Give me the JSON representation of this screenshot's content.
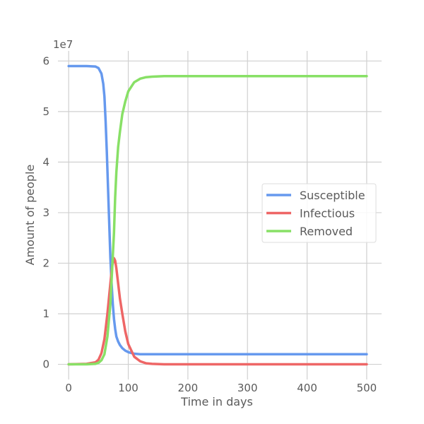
{
  "chart_data": {
    "type": "line",
    "title": "",
    "xlabel": "Time in days",
    "ylabel": "Amount of people",
    "y_offset_label": "1e7",
    "xlim": [
      -18,
      525
    ],
    "ylim": [
      -0.3,
      6.2
    ],
    "xticks": [
      0,
      100,
      200,
      300,
      400,
      500
    ],
    "xtick_labels": [
      "0",
      "100",
      "200",
      "300",
      "400",
      "500"
    ],
    "yticks": [
      0,
      1,
      2,
      3,
      4,
      5,
      6
    ],
    "ytick_labels": [
      "0",
      "1",
      "2",
      "3",
      "4",
      "5",
      "6"
    ],
    "grid": true,
    "legend_position": "center-right",
    "series": [
      {
        "name": "Susceptible",
        "color": "#6699ee",
        "x": [
          0,
          30,
          45,
          50,
          55,
          58,
          60,
          62,
          64,
          66,
          68,
          70,
          72,
          74,
          76,
          78,
          80,
          83,
          86,
          90,
          95,
          100,
          110,
          120,
          140,
          160,
          200,
          300,
          400,
          500
        ],
        "y": [
          5.9,
          5.9,
          5.89,
          5.86,
          5.75,
          5.55,
          5.3,
          4.8,
          4.2,
          3.5,
          2.8,
          2.1,
          1.6,
          1.2,
          0.9,
          0.7,
          0.55,
          0.45,
          0.38,
          0.32,
          0.27,
          0.24,
          0.21,
          0.2,
          0.2,
          0.2,
          0.2,
          0.2,
          0.2,
          0.2
        ]
      },
      {
        "name": "Infectious",
        "color": "#ee6666",
        "x": [
          0,
          30,
          45,
          50,
          55,
          60,
          65,
          70,
          73,
          76,
          78,
          80,
          83,
          86,
          90,
          95,
          100,
          110,
          120,
          130,
          140,
          160,
          200,
          300,
          400,
          500
        ],
        "y": [
          0,
          0.01,
          0.04,
          0.09,
          0.22,
          0.5,
          1.0,
          1.6,
          1.95,
          2.1,
          2.05,
          1.9,
          1.6,
          1.3,
          1.0,
          0.65,
          0.4,
          0.15,
          0.06,
          0.02,
          0.01,
          0.0,
          0.0,
          0.0,
          0.0,
          0.0
        ]
      },
      {
        "name": "Removed",
        "color": "#88e066",
        "x": [
          0,
          30,
          45,
          50,
          55,
          60,
          65,
          70,
          73,
          76,
          78,
          80,
          83,
          86,
          90,
          95,
          100,
          110,
          120,
          130,
          140,
          160,
          200,
          300,
          400,
          500
        ],
        "y": [
          0,
          0.0,
          0.01,
          0.03,
          0.08,
          0.2,
          0.55,
          1.2,
          1.9,
          2.6,
          3.3,
          3.8,
          4.3,
          4.6,
          4.95,
          5.2,
          5.4,
          5.58,
          5.65,
          5.68,
          5.69,
          5.7,
          5.7,
          5.7,
          5.7,
          5.7
        ]
      }
    ]
  }
}
